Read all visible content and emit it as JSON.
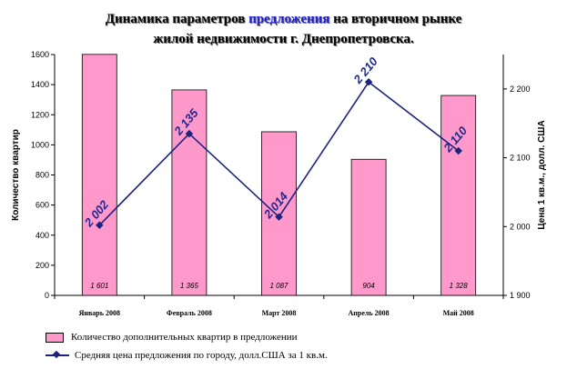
{
  "chart_data": {
    "type": "bar+line",
    "title_part1": "Динамика параметров ",
    "title_highlight": "предложения",
    "title_part2": " на вторичном рынке",
    "title_line2": "жилой недвижимости г. Днепропетровска.",
    "categories": [
      "Январь 2008",
      "Февраль 2008",
      "Март 2008",
      "Апрель 2008",
      "Май 2008"
    ],
    "y_left": {
      "label": "Количество квартир",
      "ylim": [
        0,
        1600
      ],
      "ticks": [
        "0",
        "200",
        "400",
        "600",
        "800",
        "1000",
        "1200",
        "1400",
        "1600"
      ]
    },
    "y_right": {
      "label": "Цена 1 кв.м., долл. США",
      "ylim": [
        1900,
        2250
      ],
      "ticks": [
        "1 900",
        "2 000",
        "2 100",
        "2 200"
      ],
      "tick_values": [
        1900,
        2000,
        2100,
        2200
      ]
    },
    "series": [
      {
        "name": "Количество дополнительных квартир в  предложении",
        "type": "bar",
        "axis": "left",
        "values": [
          1601,
          1365,
          1087,
          904,
          1328
        ],
        "labels": [
          "1 601",
          "1 365",
          "1 087",
          "904",
          "1 328"
        ],
        "color": "#ff99cc"
      },
      {
        "name": "Средняя цена предложения по городу, долл.США за 1 кв.м.",
        "type": "line",
        "axis": "right",
        "values": [
          2002,
          2135,
          2014,
          2210,
          2110
        ],
        "labels": [
          "2 002",
          "2 135",
          "2 014",
          "2 210",
          "2 110"
        ],
        "color": "#1a237e"
      }
    ],
    "grid": false,
    "legend_position": "bottom-left"
  }
}
